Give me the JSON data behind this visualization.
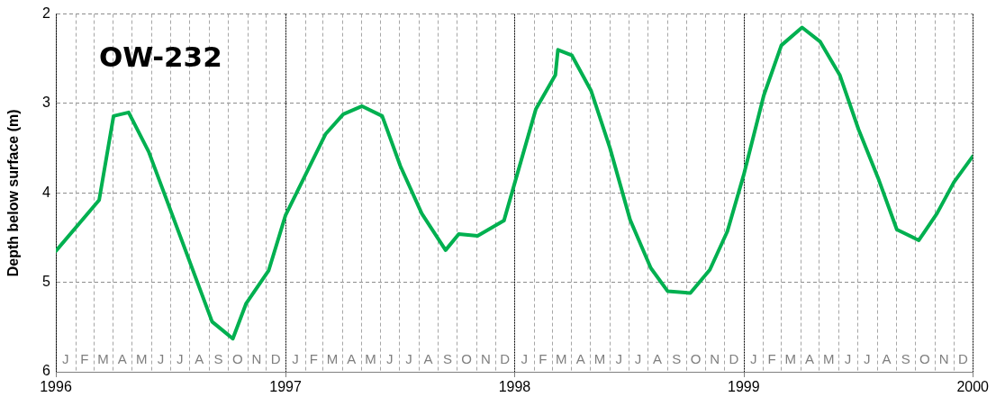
{
  "chart_data": {
    "type": "line",
    "title": "OW-232",
    "ylabel": "Depth below surface (m)",
    "x": [
      "1996-01-01",
      "1996-03-10",
      "1996-04-02",
      "1996-04-26",
      "1996-05-28",
      "1996-09-06",
      "1996-10-09",
      "1996-10-30",
      "1996-12-05",
      "1997-01-01",
      "1997-03-06",
      "1997-04-03",
      "1997-05-03",
      "1997-06-04",
      "1997-07-03",
      "1997-08-06",
      "1997-09-13",
      "1997-10-04",
      "1997-11-03",
      "1997-12-15",
      "1998-02-04",
      "1998-03-07",
      "1998-03-11",
      "1998-04-02",
      "1998-05-03",
      "1998-06-02",
      "1998-07-04",
      "1998-08-06",
      "1998-09-02",
      "1998-10-08",
      "1998-11-08",
      "1998-12-06",
      "1999-01-01",
      "1999-02-02",
      "1999-03-02",
      "1999-04-04",
      "1999-05-03",
      "1999-06-03",
      "1999-07-03",
      "1999-08-03",
      "1999-09-02",
      "1999-10-07",
      "1999-11-05",
      "1999-12-02",
      "2000-01-01"
    ],
    "series": [
      {
        "color": "#00b050",
        "values": [
          4.65,
          4.08,
          3.14,
          3.1,
          3.54,
          5.44,
          5.63,
          5.24,
          4.87,
          4.25,
          3.34,
          3.12,
          3.03,
          3.14,
          3.7,
          4.23,
          4.64,
          4.46,
          4.48,
          4.31,
          3.06,
          2.68,
          2.4,
          2.46,
          2.86,
          3.5,
          4.3,
          4.84,
          5.1,
          5.12,
          4.86,
          4.43,
          3.8,
          2.91,
          2.35,
          2.15,
          2.31,
          2.68,
          3.29,
          3.83,
          4.41,
          4.53,
          4.23,
          3.88,
          3.59
        ]
      }
    ],
    "xlim": [
      "1996-01-01",
      "2000-01-01"
    ],
    "xticks": [
      {
        "value": "1996-01-01",
        "label": "1996"
      },
      {
        "value": "1996-02-01",
        "label": null
      },
      {
        "value": "1996-03-01",
        "label": null
      },
      {
        "value": "1996-04-01",
        "label": null
      },
      {
        "value": "1996-05-01",
        "label": null
      },
      {
        "value": "1996-06-01",
        "label": null
      },
      {
        "value": "1996-07-01",
        "label": null
      },
      {
        "value": "1996-08-01",
        "label": null
      },
      {
        "value": "1996-09-01",
        "label": null
      },
      {
        "value": "1996-10-01",
        "label": null
      },
      {
        "value": "1996-11-01",
        "label": null
      },
      {
        "value": "1996-12-01",
        "label": null
      },
      {
        "value": "1997-01-01",
        "label": "1997"
      },
      {
        "value": "1997-02-01",
        "label": null
      },
      {
        "value": "1997-03-01",
        "label": null
      },
      {
        "value": "1997-04-01",
        "label": null
      },
      {
        "value": "1997-05-01",
        "label": null
      },
      {
        "value": "1997-06-01",
        "label": null
      },
      {
        "value": "1997-07-01",
        "label": null
      },
      {
        "value": "1997-08-01",
        "label": null
      },
      {
        "value": "1997-09-01",
        "label": null
      },
      {
        "value": "1997-10-01",
        "label": null
      },
      {
        "value": "1997-11-01",
        "label": null
      },
      {
        "value": "1997-12-01",
        "label": null
      },
      {
        "value": "1998-01-01",
        "label": "1998"
      },
      {
        "value": "1998-02-01",
        "label": null
      },
      {
        "value": "1998-03-01",
        "label": null
      },
      {
        "value": "1998-04-01",
        "label": null
      },
      {
        "value": "1998-05-01",
        "label": null
      },
      {
        "value": "1998-06-01",
        "label": null
      },
      {
        "value": "1998-07-01",
        "label": null
      },
      {
        "value": "1998-08-01",
        "label": null
      },
      {
        "value": "1998-09-01",
        "label": null
      },
      {
        "value": "1998-10-01",
        "label": null
      },
      {
        "value": "1998-11-01",
        "label": null
      },
      {
        "value": "1998-12-01",
        "label": null
      },
      {
        "value": "1999-01-01",
        "label": "1999"
      },
      {
        "value": "1999-02-01",
        "label": null
      },
      {
        "value": "1999-03-01",
        "label": null
      },
      {
        "value": "1999-04-01",
        "label": null
      },
      {
        "value": "1999-05-01",
        "label": null
      },
      {
        "value": "1999-06-01",
        "label": null
      },
      {
        "value": "1999-07-01",
        "label": null
      },
      {
        "value": "1999-08-01",
        "label": null
      },
      {
        "value": "1999-09-01",
        "label": null
      },
      {
        "value": "1999-10-01",
        "label": null
      },
      {
        "value": "1999-11-01",
        "label": null
      },
      {
        "value": "1999-12-01",
        "label": null
      },
      {
        "value": "2000-01-01",
        "label": "2000"
      }
    ],
    "ylim": [
      6,
      2
    ],
    "yticks": [
      2,
      3,
      4,
      5,
      6
    ],
    "grid": true,
    "legend": false,
    "marker": "none",
    "line_style": "solid",
    "annotations": [
      "J",
      "F",
      "M",
      "A",
      "M",
      "J",
      "J",
      "A",
      "S",
      "O",
      "N",
      "D",
      "J",
      "F",
      "M",
      "A",
      "M",
      "J",
      "J",
      "A",
      "S",
      "O",
      "N",
      "D",
      "J",
      "F",
      "M",
      "A",
      "M",
      "J",
      "J",
      "A",
      "S",
      "O",
      "N",
      "D",
      "J",
      "F",
      "M",
      "A",
      "M",
      "J",
      "J",
      "A",
      "S",
      "O",
      "N",
      "D"
    ]
  }
}
